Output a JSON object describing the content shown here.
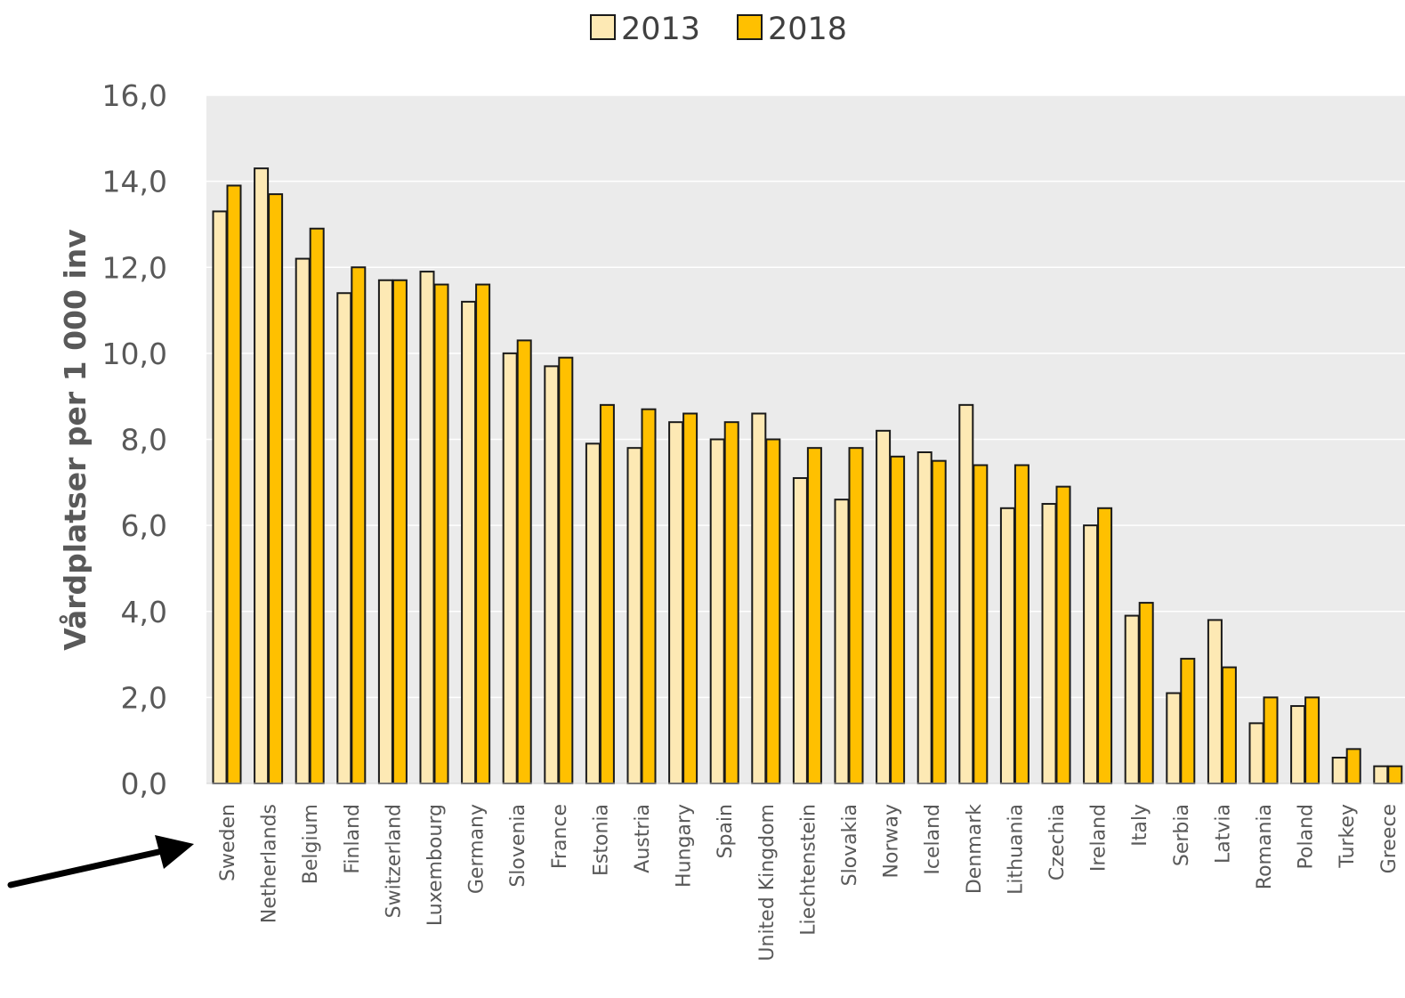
{
  "chart_data": {
    "type": "bar",
    "ylabel": "Vårdplatser per 1 000 inv",
    "xlabel": "",
    "ylim": [
      0,
      16
    ],
    "yticks": [
      "0,0",
      "2,0",
      "4,0",
      "6,0",
      "8,0",
      "10,0",
      "12,0",
      "14,0",
      "16,0"
    ],
    "grid": true,
    "legend_position": "top-center",
    "categories": [
      "Sweden",
      "Netherlands",
      "Belgium",
      "Finland",
      "Switzerland",
      "Luxembourg",
      "Germany",
      "Slovenia",
      "France",
      "Estonia",
      "Austria",
      "Hungary",
      "Spain",
      "United Kingdom",
      "Liechtenstein",
      "Slovakia",
      "Norway",
      "Iceland",
      "Denmark",
      "Lithuania",
      "Czechia",
      "Ireland",
      "Italy",
      "Serbia",
      "Latvia",
      "Romania",
      "Poland",
      "Turkey",
      "Greece"
    ],
    "series": [
      {
        "name": "2013",
        "color": "#fde9b4",
        "values": [
          13.3,
          14.3,
          12.2,
          11.4,
          11.7,
          11.9,
          11.2,
          10.0,
          9.7,
          7.9,
          7.8,
          8.4,
          8.0,
          8.6,
          7.1,
          6.6,
          8.2,
          7.7,
          8.8,
          6.4,
          6.5,
          6.0,
          3.9,
          2.1,
          3.8,
          1.4,
          1.8,
          0.6,
          0.4
        ]
      },
      {
        "name": "2018",
        "color": "#ffc000",
        "values": [
          13.9,
          13.7,
          12.9,
          12.0,
          11.7,
          11.6,
          11.6,
          10.3,
          9.9,
          8.8,
          8.7,
          8.6,
          8.4,
          8.0,
          7.8,
          7.8,
          7.6,
          7.5,
          7.4,
          7.4,
          6.9,
          6.4,
          4.2,
          2.9,
          2.7,
          2.0,
          2.0,
          0.8,
          0.4
        ]
      }
    ]
  },
  "colors": {
    "plot_background": "#ebebeb",
    "gridline": "#ffffff",
    "bar_outline": "#1a1a1a",
    "tick_text": "#595959",
    "axis_title": "#595959",
    "legend_text": "#404040",
    "arrow": "#000000"
  },
  "annotation": {
    "type": "arrow",
    "points_to": "Sweden"
  }
}
